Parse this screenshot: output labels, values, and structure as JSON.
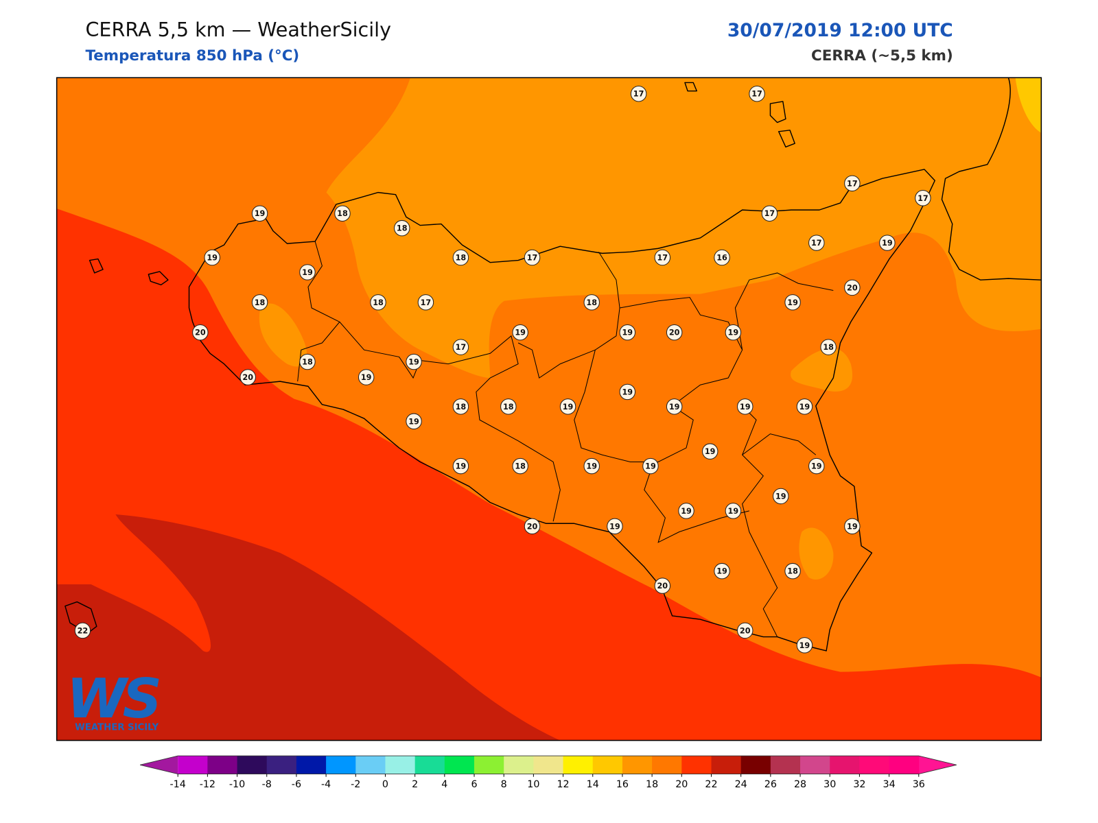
{
  "header": {
    "title": "CERRA 5,5 km — WeatherSicily",
    "subtitle": "Temperatura 850 hPa (°C)",
    "datetime": "30/07/2019 12:00 UTC",
    "model": "CERRA (~5,5 km)"
  },
  "stations": [
    17,
    17,
    17,
    17,
    19,
    18,
    18,
    17,
    19,
    18,
    17,
    17,
    16,
    17,
    19,
    19,
    20,
    18,
    18,
    17,
    18,
    19,
    20,
    19,
    19,
    20,
    19,
    17,
    18,
    18,
    19,
    20,
    19,
    19,
    18,
    18,
    19,
    19,
    19,
    19,
    19,
    19,
    19,
    18,
    19,
    19,
    19,
    19,
    19,
    19,
    20,
    19,
    19,
    19,
    18,
    20,
    20,
    19,
    22
  ],
  "colorbar": {
    "ticks": [
      -14,
      -12,
      -10,
      -8,
      -6,
      -4,
      -2,
      0,
      2,
      4,
      6,
      8,
      10,
      12,
      14,
      16,
      18,
      20,
      22,
      24,
      26,
      28,
      30,
      32,
      34,
      36
    ],
    "under": "#a3189f",
    "over": "#ff1493",
    "colors": [
      "#c400cc",
      "#7d0087",
      "#2e0a5c",
      "#3a2080",
      "#0018a8",
      "#0096ff",
      "#6acdf5",
      "#98f0e6",
      "#18dc96",
      "#00e650",
      "#8cf032",
      "#dcf08c",
      "#f0e68c",
      "#fff000",
      "#ffc800",
      "#ff9600",
      "#ff7800",
      "#ff3200",
      "#c81e0a",
      "#780000",
      "#b43250",
      "#d2468c",
      "#e6146e",
      "#ff0a78",
      "#ff0080"
    ]
  },
  "logo": {
    "mark": "WS",
    "text": "WEATHER SICILY"
  }
}
